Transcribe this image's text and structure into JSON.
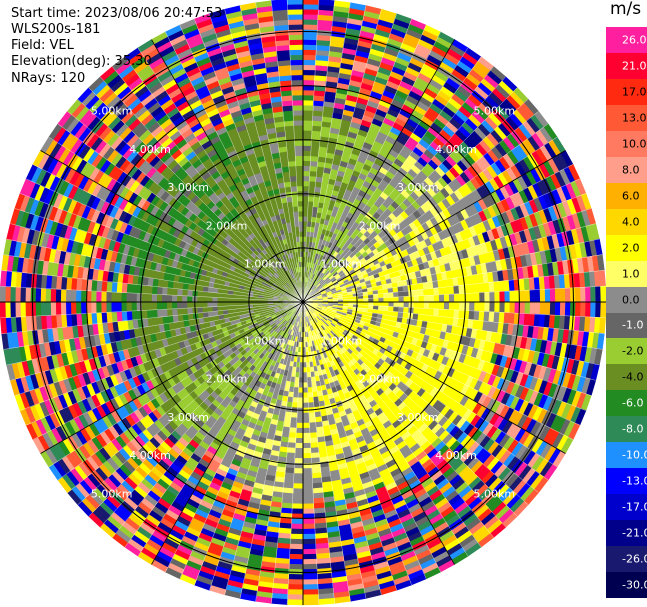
{
  "header": {
    "start_time": "Start time: 2023/08/06 20:47:53",
    "instrument": "WLS200s-181",
    "field": "Field: VEL",
    "elevation": "Elevation(deg): 35.30",
    "nrays": "NRays: 120"
  },
  "colorbar": {
    "unit": "m/s",
    "ticks": [
      "26.0",
      "21.0",
      "17.0",
      "13.0",
      "10.0",
      "8.0",
      "6.0",
      "4.0",
      "2.0",
      "1.0",
      "0.0",
      "-1.0",
      "-2.0",
      "-4.0",
      "-6.0",
      "-8.0",
      "-10.0",
      "-13.0",
      "-17.0",
      "-21.0",
      "-26.0",
      "-30.0"
    ],
    "colors": [
      "#ff1f9f",
      "#ff0030",
      "#ff2a10",
      "#ff5a35",
      "#ff7a60",
      "#ff9e8a",
      "#ffb000",
      "#ffd800",
      "#ffff00",
      "#ffff66",
      "#8c8c8c",
      "#666666",
      "#9acd32",
      "#6b8e23",
      "#228b22",
      "#2e8b57",
      "#1e90ff",
      "#0000ff",
      "#0000cd",
      "#00008b",
      "#191970",
      "#000050"
    ]
  },
  "chart_data": {
    "type": "ppi",
    "field": "VEL",
    "elevation_deg": 35.3,
    "nrays": 120,
    "range_rings_km": [
      1.0,
      2.0,
      3.0,
      4.0,
      5.0
    ],
    "ring_labels": [
      "1.00km",
      "2.00km",
      "3.00km",
      "4.00km",
      "5.00km"
    ],
    "vmin": -30.0,
    "vmax": 26.0,
    "grid": true
  }
}
